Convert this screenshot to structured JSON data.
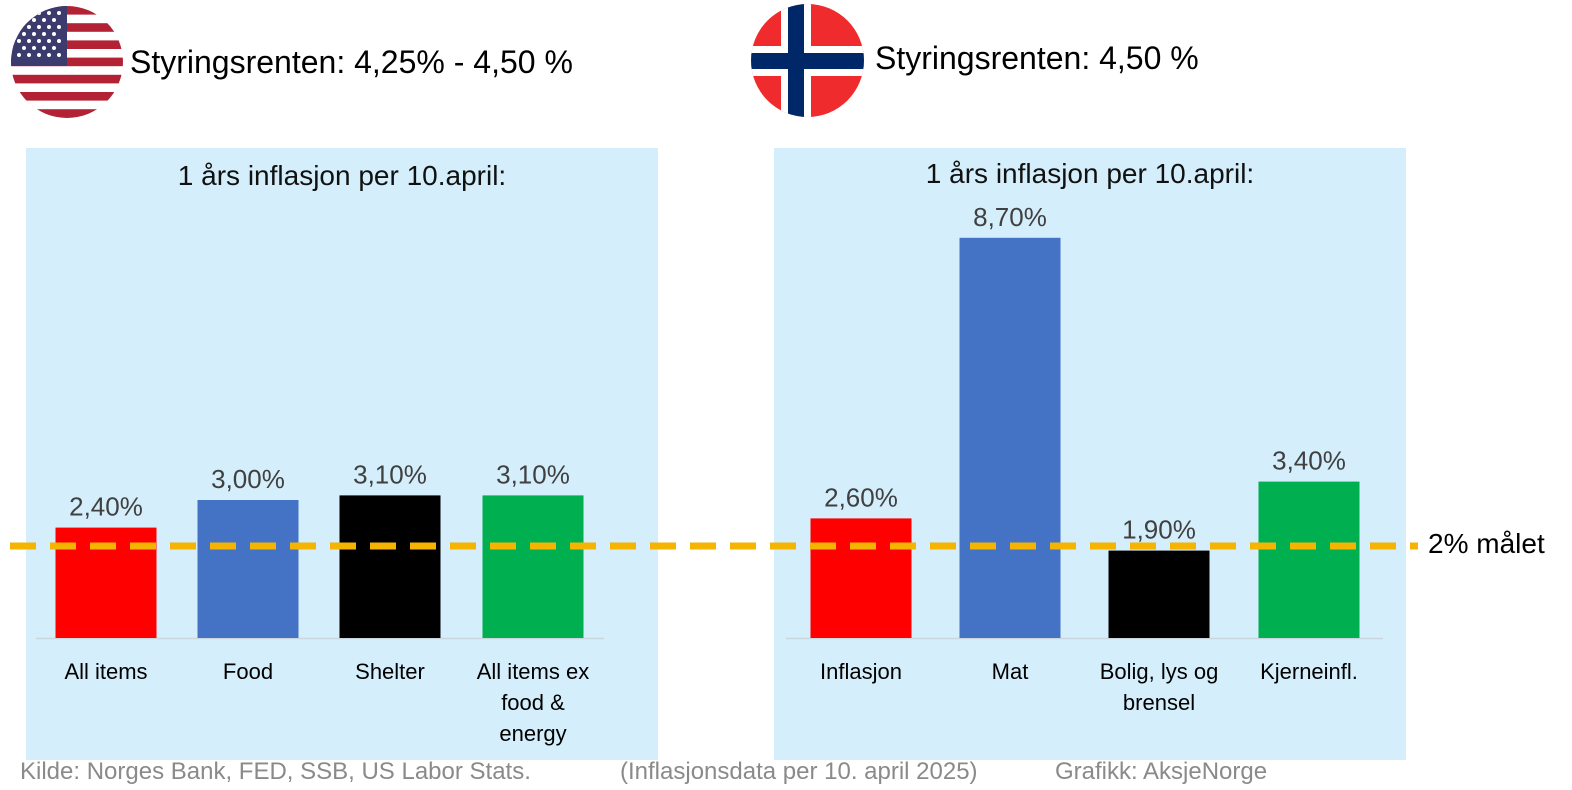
{
  "header": {
    "us": {
      "flag": "us-flag-icon",
      "policy_rate": "Styringsrenten: 4,25% - 4,50 %"
    },
    "no": {
      "flag": "norway-flag-icon",
      "policy_rate": "Styringsrenten: 4,50 %"
    }
  },
  "target_line": {
    "label": "2% målet",
    "value": 2.0,
    "color": "#f4b400"
  },
  "footer": {
    "source": "Kilde: Norges Bank, FED, SSB, US Labor Stats.",
    "data_note": "(Inflasjonsdata per 10. april 2025)",
    "credit": "Grafikk: AksjeNorge"
  },
  "chart_data": [
    {
      "type": "bar",
      "title": "1 års inflasjon per 10.april:",
      "categories": [
        [
          "All items"
        ],
        [
          "Food"
        ],
        [
          "Shelter"
        ],
        [
          "All items ex",
          "food &",
          "energy"
        ]
      ],
      "values": [
        2.4,
        3.0,
        3.1,
        3.1
      ],
      "value_labels": [
        "2,40%",
        "3,00%",
        "3,10%",
        "3,10%"
      ],
      "colors": [
        "#ff0000",
        "#4472c4",
        "#000000",
        "#00b050"
      ],
      "ylim": [
        0,
        10
      ]
    },
    {
      "type": "bar",
      "title": "1 års inflasjon per 10.april:",
      "categories": [
        [
          "Inflasjon"
        ],
        [
          "Mat"
        ],
        [
          "Bolig, lys og",
          "brensel"
        ],
        [
          "Kjerneinfl."
        ]
      ],
      "values": [
        2.6,
        8.7,
        1.9,
        3.4
      ],
      "value_labels": [
        "2,60%",
        "8,70%",
        "1,90%",
        "3,40%"
      ],
      "colors": [
        "#ff0000",
        "#4472c4",
        "#000000",
        "#00b050"
      ],
      "ylim": [
        0,
        10
      ]
    }
  ]
}
